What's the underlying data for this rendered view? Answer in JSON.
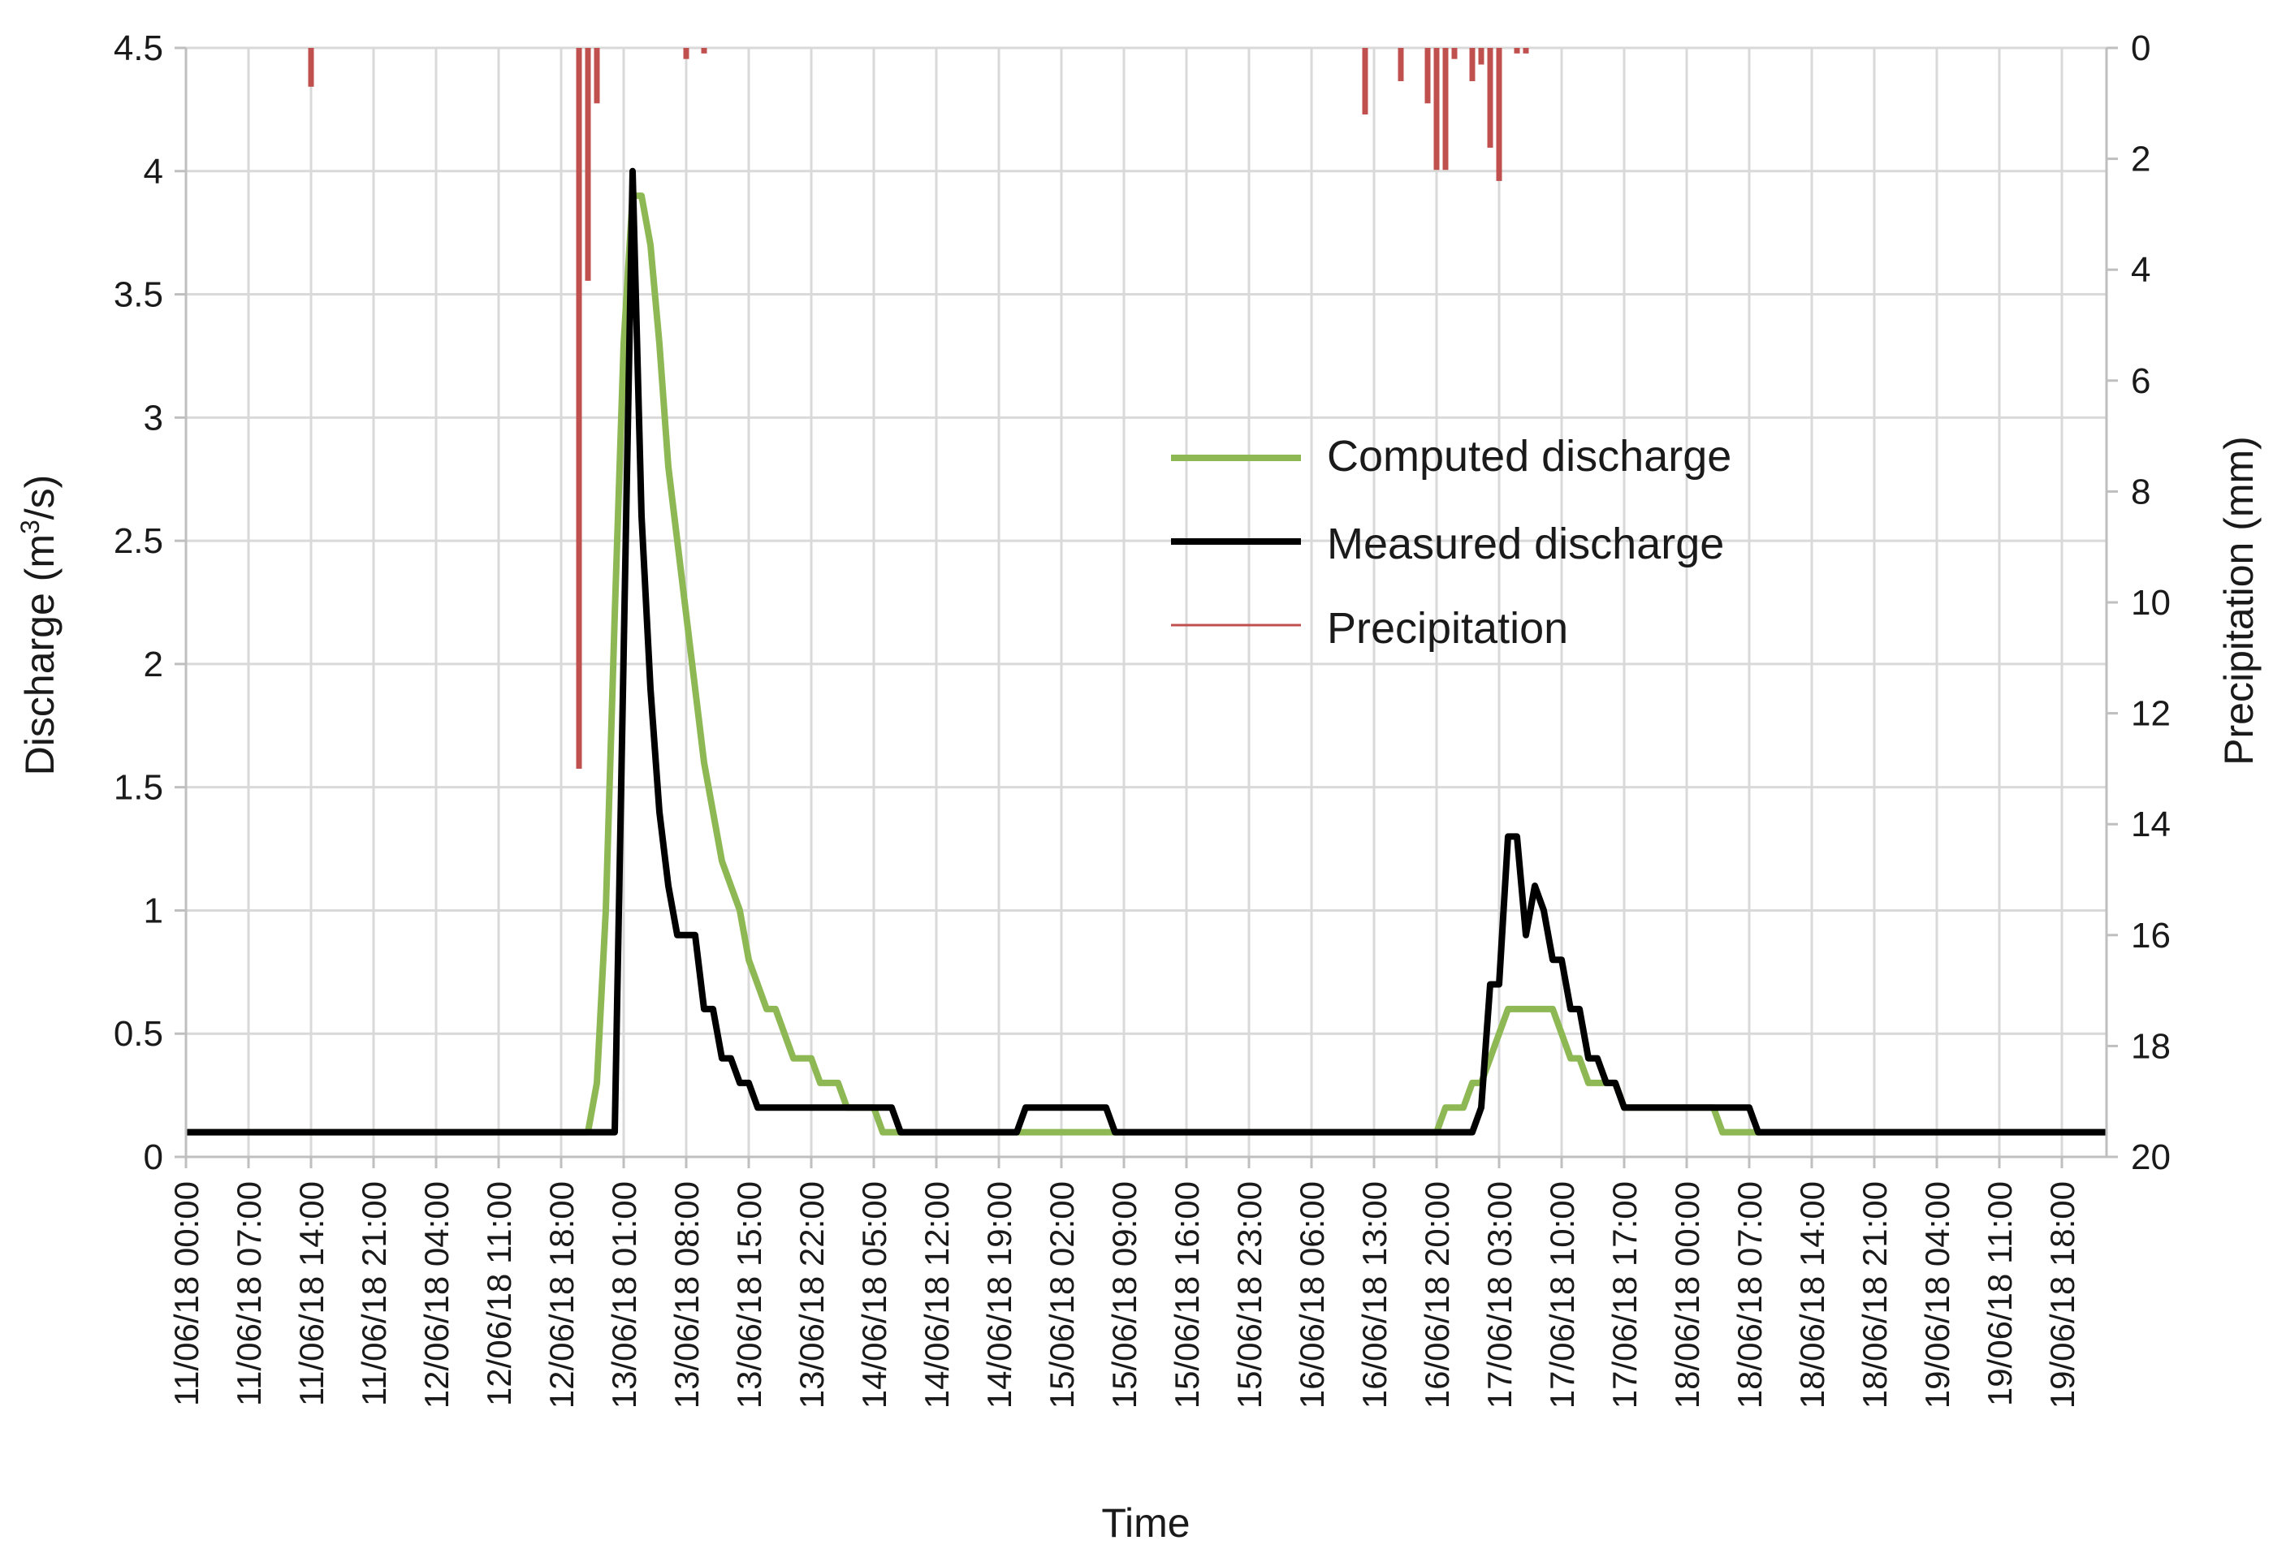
{
  "chart_data": {
    "type": "line",
    "xlabel": "Time",
    "ylabel": "Discharge (m³/s)",
    "ylabel_base": "Discharge (m",
    "ylabel_sup": "3",
    "ylabel_tail": "/s)",
    "y2label": "Precipitation (mm)",
    "ylim": [
      0,
      4.5
    ],
    "y_ticks": [
      "0",
      "0.5",
      "1",
      "1.5",
      "2",
      "2.5",
      "3",
      "3.5",
      "4",
      "4.5"
    ],
    "y2lim": [
      0,
      20
    ],
    "y2_reversed": true,
    "y2_ticks": [
      "0",
      "2",
      "4",
      "6",
      "8",
      "10",
      "12",
      "14",
      "16",
      "18",
      "20"
    ],
    "x_start": "11/06/18 00:00",
    "x_end": "19/06/18 23:00",
    "x_tick_labels": [
      "11/06/18 00:00",
      "11/06/18 07:00",
      "11/06/18 14:00",
      "11/06/18 21:00",
      "12/06/18 04:00",
      "12/06/18 11:00",
      "12/06/18 18:00",
      "13/06/18 01:00",
      "13/06/18 08:00",
      "13/06/18 15:00",
      "13/06/18 22:00",
      "14/06/18 05:00",
      "14/06/18 12:00",
      "14/06/18 19:00",
      "15/06/18 02:00",
      "15/06/18 09:00",
      "15/06/18 16:00",
      "15/06/18 23:00",
      "16/06/18 06:00",
      "16/06/18 13:00",
      "16/06/18 20:00",
      "17/06/18 03:00",
      "17/06/18 10:00",
      "17/06/18 17:00",
      "18/06/18 00:00",
      "18/06/18 07:00",
      "18/06/18 14:00",
      "18/06/18 21:00",
      "19/06/18 04:00",
      "19/06/18 11:00",
      "19/06/18 18:00"
    ],
    "grid": true,
    "legend_position": "center-right",
    "series": [
      {
        "name": "Computed discharge",
        "color": "#8db854",
        "axis": "left",
        "points": [
          [
            "11/06/18 00:00",
            0.1
          ],
          [
            "12/06/18 21:00",
            0.1
          ],
          [
            "12/06/18 22:00",
            0.3
          ],
          [
            "12/06/18 23:00",
            1.0
          ],
          [
            "13/06/18 00:00",
            2.2
          ],
          [
            "13/06/18 01:00",
            3.3
          ],
          [
            "13/06/18 02:00",
            3.9
          ],
          [
            "13/06/18 03:00",
            3.9
          ],
          [
            "13/06/18 04:00",
            3.7
          ],
          [
            "13/06/18 05:00",
            3.3
          ],
          [
            "13/06/18 06:00",
            2.8
          ],
          [
            "13/06/18 07:00",
            2.5
          ],
          [
            "13/06/18 08:00",
            2.2
          ],
          [
            "13/06/18 09:00",
            1.9
          ],
          [
            "13/06/18 10:00",
            1.6
          ],
          [
            "13/06/18 11:00",
            1.4
          ],
          [
            "13/06/18 12:00",
            1.2
          ],
          [
            "13/06/18 13:00",
            1.1
          ],
          [
            "13/06/18 14:00",
            1.0
          ],
          [
            "13/06/18 15:00",
            0.8
          ],
          [
            "13/06/18 16:00",
            0.7
          ],
          [
            "13/06/18 17:00",
            0.6
          ],
          [
            "13/06/18 18:00",
            0.6
          ],
          [
            "13/06/18 19:00",
            0.5
          ],
          [
            "13/06/18 20:00",
            0.4
          ],
          [
            "13/06/18 22:00",
            0.4
          ],
          [
            "13/06/18 23:00",
            0.3
          ],
          [
            "14/06/18 01:00",
            0.3
          ],
          [
            "14/06/18 02:00",
            0.2
          ],
          [
            "14/06/18 05:00",
            0.2
          ],
          [
            "14/06/18 06:00",
            0.1
          ],
          [
            "16/06/18 20:00",
            0.1
          ],
          [
            "16/06/18 21:00",
            0.2
          ],
          [
            "16/06/18 23:00",
            0.2
          ],
          [
            "17/06/18 00:00",
            0.3
          ],
          [
            "17/06/18 01:00",
            0.3
          ],
          [
            "17/06/18 02:00",
            0.4
          ],
          [
            "17/06/18 03:00",
            0.5
          ],
          [
            "17/06/18 04:00",
            0.6
          ],
          [
            "17/06/18 09:00",
            0.6
          ],
          [
            "17/06/18 10:00",
            0.5
          ],
          [
            "17/06/18 11:00",
            0.4
          ],
          [
            "17/06/18 12:00",
            0.4
          ],
          [
            "17/06/18 13:00",
            0.3
          ],
          [
            "17/06/18 16:00",
            0.3
          ],
          [
            "17/06/18 17:00",
            0.2
          ],
          [
            "18/06/18 03:00",
            0.2
          ],
          [
            "18/06/18 04:00",
            0.1
          ],
          [
            "19/06/18 23:00",
            0.1
          ]
        ]
      },
      {
        "name": "Measured discharge",
        "color": "#000000",
        "axis": "left",
        "points": [
          [
            "11/06/18 00:00",
            0.1
          ],
          [
            "12/06/18 23:00",
            0.1
          ],
          [
            "13/06/18 00:00",
            0.1
          ],
          [
            "13/06/18 02:00",
            4.0
          ],
          [
            "13/06/18 03:00",
            2.6
          ],
          [
            "13/06/18 04:00",
            1.9
          ],
          [
            "13/06/18 05:00",
            1.4
          ],
          [
            "13/06/18 06:00",
            1.1
          ],
          [
            "13/06/18 07:00",
            0.9
          ],
          [
            "13/06/18 08:00",
            0.9
          ],
          [
            "13/06/18 09:00",
            0.9
          ],
          [
            "13/06/18 10:00",
            0.6
          ],
          [
            "13/06/18 11:00",
            0.6
          ],
          [
            "13/06/18 12:00",
            0.4
          ],
          [
            "13/06/18 13:00",
            0.4
          ],
          [
            "13/06/18 14:00",
            0.3
          ],
          [
            "13/06/18 15:00",
            0.3
          ],
          [
            "13/06/18 16:00",
            0.2
          ],
          [
            "14/06/18 07:00",
            0.2
          ],
          [
            "14/06/18 08:00",
            0.1
          ],
          [
            "14/06/18 21:00",
            0.1
          ],
          [
            "14/06/18 22:00",
            0.2
          ],
          [
            "15/06/18 07:00",
            0.2
          ],
          [
            "15/06/18 08:00",
            0.1
          ],
          [
            "17/06/18 00:00",
            0.1
          ],
          [
            "17/06/18 01:00",
            0.2
          ],
          [
            "17/06/18 02:00",
            0.7
          ],
          [
            "17/06/18 03:00",
            0.7
          ],
          [
            "17/06/18 04:00",
            1.3
          ],
          [
            "17/06/18 05:00",
            1.3
          ],
          [
            "17/06/18 06:00",
            0.9
          ],
          [
            "17/06/18 07:00",
            1.1
          ],
          [
            "17/06/18 08:00",
            1.0
          ],
          [
            "17/06/18 09:00",
            0.8
          ],
          [
            "17/06/18 10:00",
            0.8
          ],
          [
            "17/06/18 11:00",
            0.6
          ],
          [
            "17/06/18 12:00",
            0.6
          ],
          [
            "17/06/18 13:00",
            0.4
          ],
          [
            "17/06/18 14:00",
            0.4
          ],
          [
            "17/06/18 15:00",
            0.3
          ],
          [
            "17/06/18 16:00",
            0.3
          ],
          [
            "17/06/18 17:00",
            0.2
          ],
          [
            "18/06/18 06:00",
            0.2
          ],
          [
            "18/06/18 07:00",
            0.2
          ],
          [
            "18/06/18 08:00",
            0.1
          ],
          [
            "19/06/18 23:00",
            0.1
          ]
        ]
      },
      {
        "name": "Precipitation",
        "color": "#c0504d",
        "axis": "right",
        "type": "bar",
        "points": [
          [
            "11/06/18 14:00",
            0.7
          ],
          [
            "12/06/18 20:00",
            13.0
          ],
          [
            "12/06/18 21:00",
            4.2
          ],
          [
            "12/06/18 22:00",
            1.0
          ],
          [
            "13/06/18 08:00",
            0.2
          ],
          [
            "13/06/18 10:00",
            0.1
          ],
          [
            "16/06/18 12:00",
            1.2
          ],
          [
            "16/06/18 16:00",
            0.6
          ],
          [
            "16/06/18 19:00",
            1.0
          ],
          [
            "16/06/18 20:00",
            2.2
          ],
          [
            "16/06/18 21:00",
            2.2
          ],
          [
            "16/06/18 22:00",
            0.2
          ],
          [
            "17/06/18 00:00",
            0.6
          ],
          [
            "17/06/18 01:00",
            0.3
          ],
          [
            "17/06/18 02:00",
            1.8
          ],
          [
            "17/06/18 03:00",
            2.4
          ],
          [
            "17/06/18 05:00",
            0.1
          ],
          [
            "17/06/18 06:00",
            0.1
          ]
        ]
      }
    ]
  }
}
